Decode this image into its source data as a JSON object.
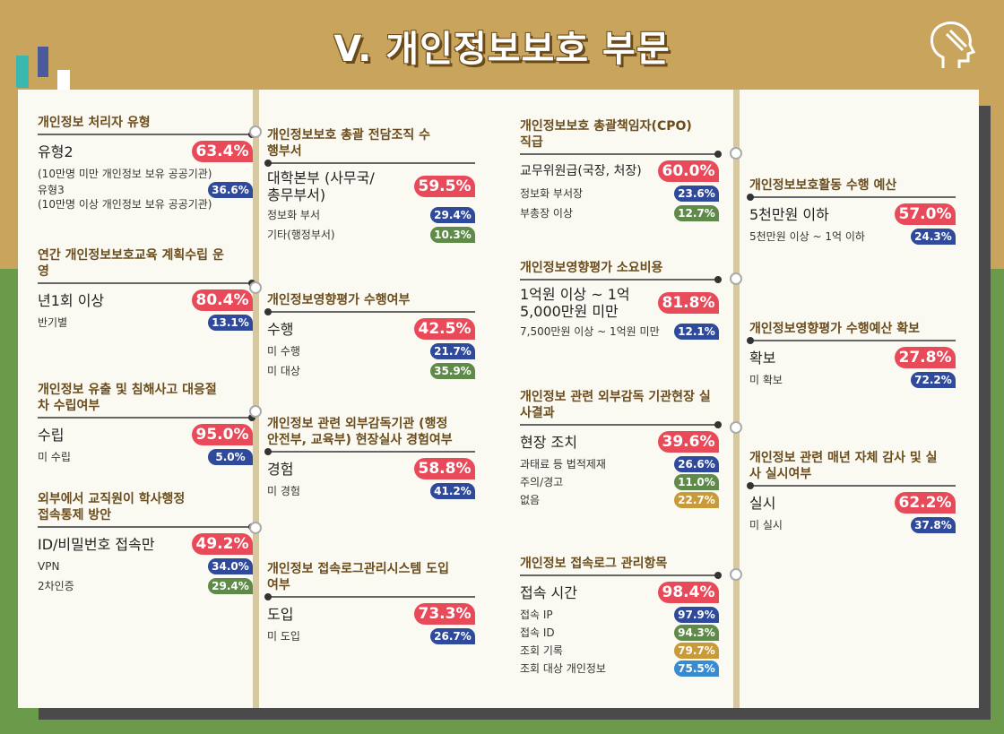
{
  "title": "V. 개인정보보호 부문",
  "colors": {
    "red": "#e94a5a",
    "blue": "#2f4a9a",
    "green": "#5f8a4a",
    "gold": "#c89a3a",
    "sky": "#3a8ad0"
  },
  "s1": {
    "h": "개인정보 처리자 유형",
    "m_label": "유형2",
    "m_val": "63.4%",
    "m_note": "(10만명 미만 개인정보 보유 공공기관)",
    "s1_label": "유형3",
    "s1_val": "36.6%",
    "s1_note": "(10만명 이상 개인정보 보유 공공기관)"
  },
  "s2": {
    "h": "연간 개인정보보호교육 계획수립 운영",
    "m_label": "년1회 이상",
    "m_val": "80.4%",
    "s1_label": "반기별",
    "s1_val": "13.1%"
  },
  "s3": {
    "h": "개인정보 유출 및 침해사고 대응절차 수립여부",
    "m_label": "수립",
    "m_val": "95.0%",
    "s1_label": "미 수립",
    "s1_val": "5.0%"
  },
  "s4": {
    "h": "외부에서 교직원이 학사행정 접속통제 방안",
    "m_label": "ID/비밀번호 접속만",
    "m_val": "49.2%",
    "s1_label": "VPN",
    "s1_val": "34.0%",
    "s2_label": "2차인증",
    "s2_val": "29.4%"
  },
  "s5": {
    "h": "개인정보보호 총괄 전담조직 수행부서",
    "m_label": "대학본부 (사무국/총무부서)",
    "m_val": "59.5%",
    "s1_label": "정보화 부서",
    "s1_val": "29.4%",
    "s2_label": "기타(행정부서)",
    "s2_val": "10.3%"
  },
  "s6": {
    "h": "개인정보영향평가 수행여부",
    "m_label": "수행",
    "m_val": "42.5%",
    "s1_label": "미 수행",
    "s1_val": "21.7%",
    "s2_label": "미 대상",
    "s2_val": "35.9%"
  },
  "s7": {
    "h": "개인정보 관련 외부감독기관 (행정안전부, 교육부) 현장실사 경험여부",
    "m_label": "경험",
    "m_val": "58.8%",
    "s1_label": "미 경험",
    "s1_val": "41.2%"
  },
  "s8": {
    "h": "개인정보 접속로그관리시스템 도입여부",
    "m_label": "도입",
    "m_val": "73.3%",
    "s1_label": "미 도입",
    "s1_val": "26.7%"
  },
  "s9": {
    "h": "개인정보보호 총괄책임자(CPO) 직급",
    "m_label": "교무위원급(국장, 처장)",
    "m_val": "60.0%",
    "s1_label": "정보화 부서장",
    "s1_val": "23.6%",
    "s2_label": "부총장 이상",
    "s2_val": "12.7%"
  },
  "s10": {
    "h": "개인정보영향평가 소요비용",
    "m_label": "1억원 이상 ~ 1억 5,000만원 미만",
    "m_val": "81.8%",
    "s1_label": "7,500만원 이상 ~ 1억원 미만",
    "s1_val": "12.1%"
  },
  "s11": {
    "h": "개인정보 관련 외부감독 기관현장 실사결과",
    "m_label": "현장 조치",
    "m_val": "39.6%",
    "s1_label": "과태료 등 법적제재",
    "s1_val": "26.6%",
    "s2_label": "주의/경고",
    "s2_val": "11.0%",
    "s3_label": "없음",
    "s3_val": "22.7%"
  },
  "s12": {
    "h": "개인정보 접속로그 관리항목",
    "m_label": "접속 시간",
    "m_val": "98.4%",
    "s1_label": "접속 IP",
    "s1_val": "97.9%",
    "s2_label": "접속 ID",
    "s2_val": "94.3%",
    "s3_label": "조회 기록",
    "s3_val": "79.7%",
    "s4_label": "조회 대상 개인정보",
    "s4_val": "75.5%"
  },
  "s13": {
    "h": "개인정보보호활동 수행 예산",
    "m_label": "5천만원 이하",
    "m_val": "57.0%",
    "s1_label": "5천만원 이상 ~ 1억 이하",
    "s1_val": "24.3%"
  },
  "s14": {
    "h": "개인정보영향평가 수행예산 확보",
    "m_label": "확보",
    "m_val": "27.8%",
    "s1_label": "미 확보",
    "s1_val": "72.2%"
  },
  "s15": {
    "h": "개인정보 관련 매년 자체 감사 및 실사 실시여부",
    "m_label": "실시",
    "m_val": "62.2%",
    "s1_label": "미 실시",
    "s1_val": "37.8%"
  }
}
